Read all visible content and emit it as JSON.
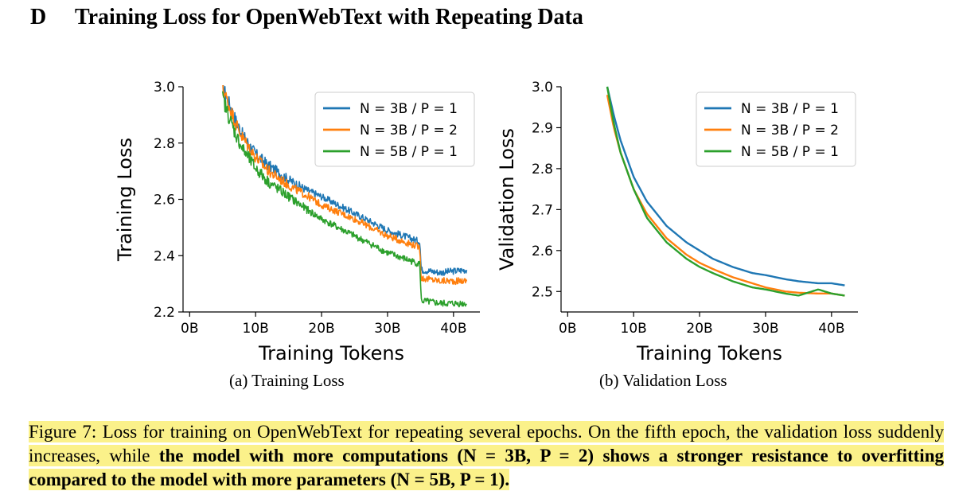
{
  "section": {
    "letter": "D",
    "title": "Training Loss for OpenWebText with Repeating Data"
  },
  "figure": {
    "subcaption_a": "(a) Training Loss",
    "subcaption_b": "(b) Validation Loss",
    "caption_plain": "Figure 7: Loss for training on OpenWebText for repeating several epochs. On the fifth epoch, the validation loss suddenly increases, while ",
    "caption_bold": "the model with more computations (N = 3B, P = 2) shows a stronger resistance to overfitting compared to the model with more parameters (N = 5B, P = 1)."
  },
  "colors": {
    "blue": "#1f77b4",
    "orange": "#ff7f0e",
    "green": "#2ca02c",
    "highlight": "#fbf18a"
  },
  "chart_data": [
    {
      "type": "line",
      "title": "",
      "xlabel": "Training Tokens",
      "ylabel": "Training Loss",
      "xlim": [
        -1,
        44
      ],
      "ylim": [
        2.2,
        3.0
      ],
      "xticks": [
        0,
        10,
        20,
        30,
        40
      ],
      "xtick_labels": [
        "0B",
        "10B",
        "20B",
        "30B",
        "40B"
      ],
      "yticks": [
        2.2,
        2.4,
        2.6,
        2.8,
        3.0
      ],
      "ytick_labels": [
        "2.2",
        "2.4",
        "2.6",
        "2.8",
        "3.0"
      ],
      "legend_position": "top-right",
      "noisy": true,
      "series": [
        {
          "name": "N = 3B / P = 1",
          "color": "#1f77b4",
          "x": [
            5,
            6,
            7,
            8,
            10,
            12,
            15,
            18,
            20,
            25,
            30,
            34.9,
            35.1,
            38,
            42
          ],
          "y": [
            3.0,
            2.94,
            2.88,
            2.83,
            2.76,
            2.72,
            2.67,
            2.63,
            2.61,
            2.55,
            2.49,
            2.45,
            2.35,
            2.34,
            2.35
          ]
        },
        {
          "name": "N = 3B / P = 2",
          "color": "#ff7f0e",
          "x": [
            5,
            6,
            7,
            8,
            10,
            12,
            15,
            18,
            20,
            25,
            30,
            34.9,
            35.1,
            38,
            42
          ],
          "y": [
            3.0,
            2.93,
            2.87,
            2.82,
            2.75,
            2.7,
            2.65,
            2.61,
            2.58,
            2.53,
            2.47,
            2.43,
            2.32,
            2.31,
            2.31
          ]
        },
        {
          "name": "N = 5B / P = 1",
          "color": "#2ca02c",
          "x": [
            5,
            6,
            7,
            8,
            10,
            12,
            15,
            18,
            20,
            25,
            30,
            34.9,
            35.1,
            38,
            42
          ],
          "y": [
            2.96,
            2.89,
            2.83,
            2.78,
            2.71,
            2.66,
            2.61,
            2.56,
            2.53,
            2.47,
            2.41,
            2.37,
            2.24,
            2.23,
            2.23
          ]
        }
      ]
    },
    {
      "type": "line",
      "title": "",
      "xlabel": "Training Tokens",
      "ylabel": "Validation Loss",
      "xlim": [
        -1,
        44
      ],
      "ylim": [
        2.45,
        3.0
      ],
      "xticks": [
        0,
        10,
        20,
        30,
        40
      ],
      "xtick_labels": [
        "0B",
        "10B",
        "20B",
        "30B",
        "40B"
      ],
      "yticks": [
        2.5,
        2.6,
        2.7,
        2.8,
        2.9,
        3.0
      ],
      "ytick_labels": [
        "2.5",
        "2.6",
        "2.7",
        "2.8",
        "2.9",
        "3.0"
      ],
      "legend_position": "top-right",
      "noisy": false,
      "series": [
        {
          "name": "N = 3B / P = 1",
          "color": "#1f77b4",
          "x": [
            6,
            7,
            8,
            10,
            12,
            15,
            18,
            20,
            22,
            25,
            28,
            30,
            33,
            35,
            38,
            40,
            42
          ],
          "y": [
            3.0,
            2.93,
            2.87,
            2.78,
            2.72,
            2.66,
            2.62,
            2.6,
            2.58,
            2.56,
            2.545,
            2.54,
            2.53,
            2.525,
            2.52,
            2.52,
            2.515
          ]
        },
        {
          "name": "N = 3B / P = 2",
          "color": "#ff7f0e",
          "x": [
            6,
            7,
            8,
            10,
            12,
            15,
            18,
            20,
            22,
            25,
            28,
            30,
            33,
            35,
            38,
            40,
            42
          ],
          "y": [
            2.98,
            2.9,
            2.84,
            2.75,
            2.69,
            2.63,
            2.59,
            2.57,
            2.555,
            2.535,
            2.52,
            2.51,
            2.5,
            2.497,
            2.495,
            2.495,
            2.49
          ]
        },
        {
          "name": "N = 5B / P = 1",
          "color": "#2ca02c",
          "x": [
            6,
            7,
            8,
            10,
            12,
            15,
            18,
            20,
            22,
            25,
            28,
            30,
            33,
            35,
            38,
            40,
            42
          ],
          "y": [
            3.0,
            2.91,
            2.84,
            2.75,
            2.68,
            2.62,
            2.58,
            2.56,
            2.545,
            2.525,
            2.51,
            2.505,
            2.495,
            2.49,
            2.505,
            2.495,
            2.49
          ]
        }
      ]
    }
  ]
}
